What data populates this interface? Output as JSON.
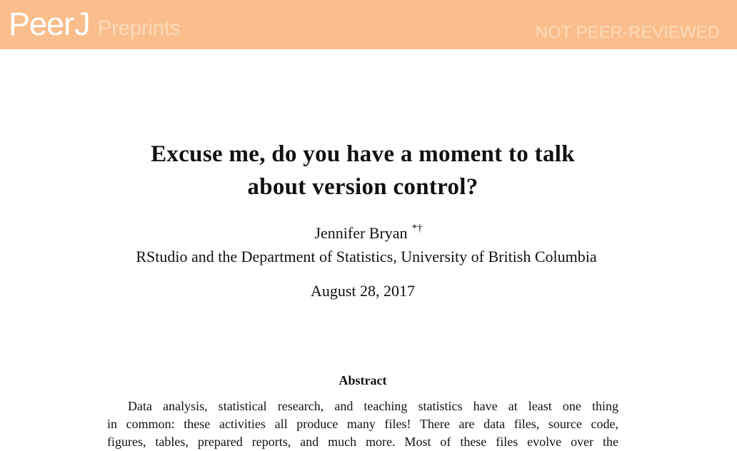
{
  "banner": {
    "logo_peer": "Peer",
    "logo_j": "J",
    "logo_preprints": "Preprints",
    "status": "NOT PEER-REVIEWED",
    "background_color": "#f9be8c"
  },
  "paper": {
    "title_line1": "Excuse me, do you have a moment to talk",
    "title_line2": "about version control?",
    "author": "Jennifer Bryan",
    "author_marks": "*†",
    "affiliation": "RStudio and the Department of Statistics, University of British Columbia",
    "date": "August 28, 2017",
    "abstract_heading": "Abstract",
    "abstract_lines": [
      "Data analysis, statistical research, and teaching statistics have at least one thing",
      "in common: these activities all produce many files! There are data files, source code,",
      "figures, tables, prepared reports, and much more. Most of these files evolve over the"
    ]
  }
}
